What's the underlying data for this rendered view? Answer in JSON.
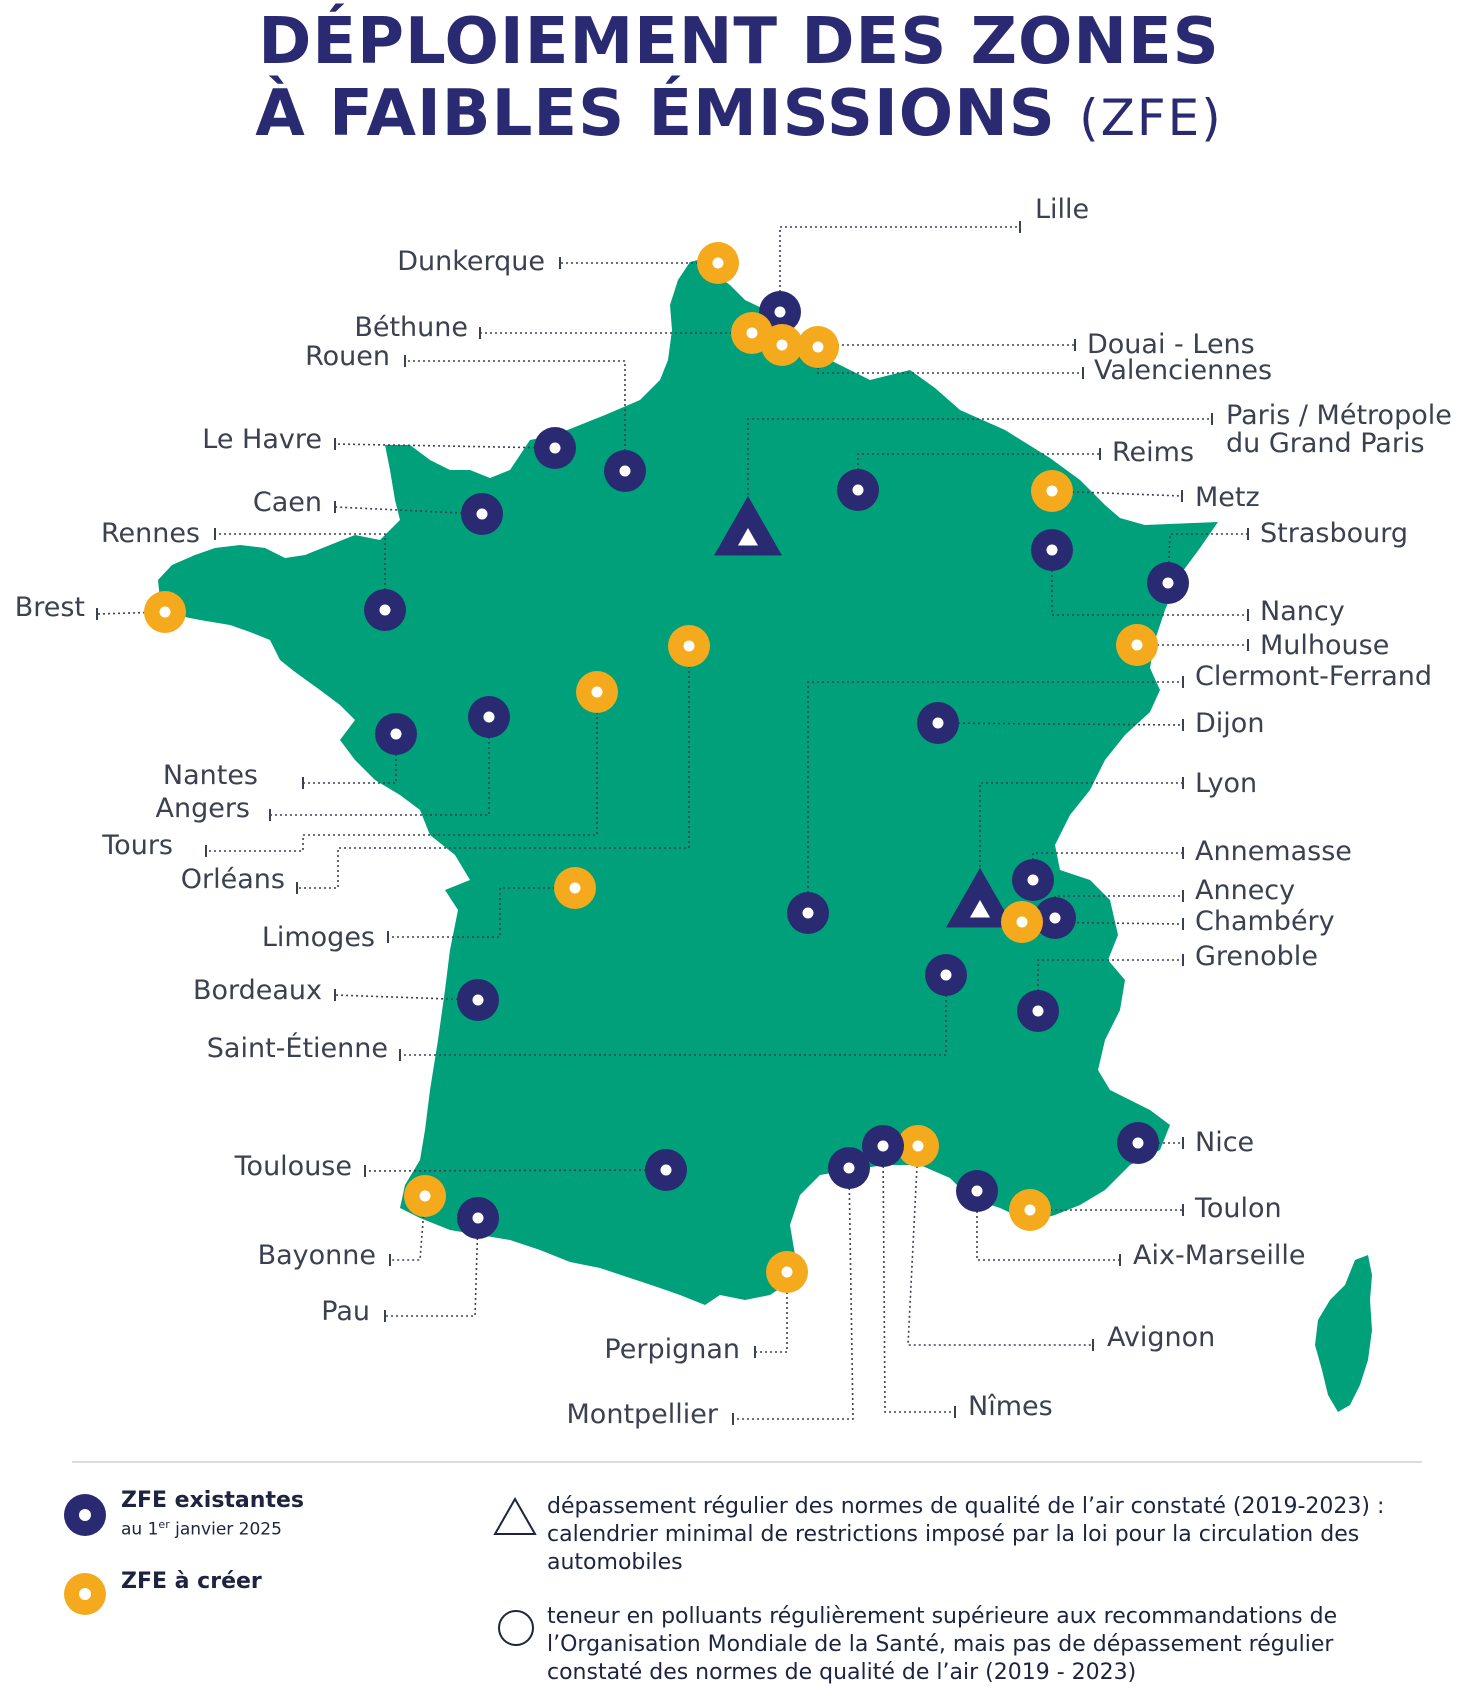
{
  "title": {
    "line1": "DÉPLOIEMENT DES ZONES",
    "line2": "À FAIBLES ÉMISSIONS",
    "suffix": "(ZFE)"
  },
  "colors": {
    "land": "#00a07a",
    "existing": "#2a2a72",
    "to_create": "#f4aa1c",
    "label_text": "#3b4151"
  },
  "cities": [
    {
      "id": "lille",
      "label": "Lille",
      "status": "existing"
    },
    {
      "id": "dunkerque",
      "label": "Dunkerque",
      "status": "to_create"
    },
    {
      "id": "bethune",
      "label": "Béthune",
      "status": "to_create"
    },
    {
      "id": "rouen",
      "label": "Rouen",
      "status": "existing"
    },
    {
      "id": "douai-lens",
      "label": "Douai - Lens",
      "status": "to_create"
    },
    {
      "id": "valenciennes",
      "label": "Valenciennes",
      "status": "to_create"
    },
    {
      "id": "le-havre",
      "label": "Le Havre",
      "status": "existing"
    },
    {
      "id": "paris",
      "label": "Paris / Métropole",
      "label2": "du Grand Paris",
      "status": "existing",
      "exceedance": true
    },
    {
      "id": "reims",
      "label": "Reims",
      "status": "existing"
    },
    {
      "id": "caen",
      "label": "Caen",
      "status": "existing"
    },
    {
      "id": "metz",
      "label": "Metz",
      "status": "to_create"
    },
    {
      "id": "rennes",
      "label": "Rennes",
      "status": "existing"
    },
    {
      "id": "strasbourg",
      "label": "Strasbourg",
      "status": "existing"
    },
    {
      "id": "brest",
      "label": "Brest",
      "status": "to_create"
    },
    {
      "id": "nancy",
      "label": "Nancy",
      "status": "existing"
    },
    {
      "id": "mulhouse",
      "label": "Mulhouse",
      "status": "to_create"
    },
    {
      "id": "clermont-ferrand",
      "label": "Clermont-Ferrand",
      "status": "existing"
    },
    {
      "id": "dijon",
      "label": "Dijon",
      "status": "existing"
    },
    {
      "id": "nantes",
      "label": "Nantes",
      "status": "existing"
    },
    {
      "id": "angers",
      "label": "Angers",
      "status": "existing"
    },
    {
      "id": "lyon",
      "label": "Lyon",
      "status": "existing",
      "exceedance": true
    },
    {
      "id": "tours",
      "label": "Tours",
      "status": "to_create"
    },
    {
      "id": "orleans",
      "label": "Orléans",
      "status": "to_create"
    },
    {
      "id": "annemasse",
      "label": "Annemasse",
      "status": "existing"
    },
    {
      "id": "annecy",
      "label": "Annecy",
      "status": "existing"
    },
    {
      "id": "chambery",
      "label": "Chambéry",
      "status": "to_create"
    },
    {
      "id": "grenoble",
      "label": "Grenoble",
      "status": "existing"
    },
    {
      "id": "limoges",
      "label": "Limoges",
      "status": "to_create"
    },
    {
      "id": "bordeaux",
      "label": "Bordeaux",
      "status": "existing"
    },
    {
      "id": "saint-etienne",
      "label": "Saint-Étienne",
      "status": "existing"
    },
    {
      "id": "nice",
      "label": "Nice",
      "status": "existing"
    },
    {
      "id": "toulouse",
      "label": "Toulouse",
      "status": "existing"
    },
    {
      "id": "toulon",
      "label": "Toulon",
      "status": "to_create"
    },
    {
      "id": "aix-marseille",
      "label": "Aix-Marseille",
      "status": "existing"
    },
    {
      "id": "bayonne",
      "label": "Bayonne",
      "status": "to_create"
    },
    {
      "id": "pau",
      "label": "Pau",
      "status": "existing"
    },
    {
      "id": "perpignan",
      "label": "Perpignan",
      "status": "to_create"
    },
    {
      "id": "avignon",
      "label": "Avignon",
      "status": "to_create"
    },
    {
      "id": "montpellier",
      "label": "Montpellier",
      "status": "existing"
    },
    {
      "id": "nimes",
      "label": "Nîmes",
      "status": "existing"
    }
  ],
  "legend": {
    "existing_label": "ZFE existantes",
    "existing_sub_prefix": "au 1",
    "existing_sub_sup": "er",
    "existing_sub_suffix": " janvier 2025",
    "create_label": "ZFE à créer",
    "triangle_text": "dépassement régulier des normes de qualité de l’air constaté (2019-2023) : calendrier minimal de restrictions imposé par la loi pour la circulation des automobiles",
    "triangle_icon": "triangle-outline-icon",
    "circle_text": "teneur en polluants régulièrement supérieure aux recommandations de l’Organisation Mondiale de la Santé, mais pas de dépassement régulier constaté des normes de qualité de l’air (2019 - 2023)",
    "circle_icon": "circle-outline-icon"
  }
}
